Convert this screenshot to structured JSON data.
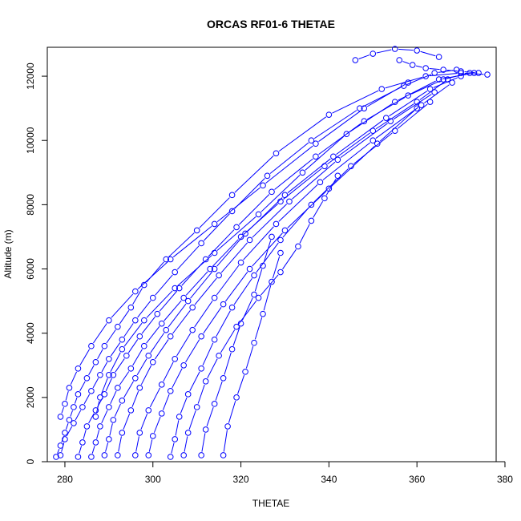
{
  "chart_data": {
    "type": "line",
    "title": "ORCAS RF01-6 THETAE",
    "xlabel": "THETAE",
    "ylabel": "Altitude (m)",
    "xlim": [
      276,
      378
    ],
    "ylim": [
      0,
      12900
    ],
    "x_ticks": [
      280,
      300,
      320,
      340,
      360,
      380
    ],
    "y_ticks": [
      0,
      2000,
      4000,
      6000,
      8000,
      10000,
      12000
    ],
    "x_tick_labels": [
      "280",
      "300",
      "320",
      "340",
      "360",
      "380"
    ],
    "y_tick_labels": [
      "0",
      "2000",
      "4000",
      "6000",
      "8000",
      "10000",
      "12000"
    ],
    "marker": "open-circle",
    "line_style": "solid with gaps at markers",
    "color": "#0000ff",
    "grid": false,
    "series": [
      {
        "x": [
          278,
          279,
          280,
          281,
          282,
          283,
          285,
          287,
          289,
          292,
          295,
          298,
          303,
          310,
          318,
          328,
          340,
          352,
          362,
          370,
          376
        ],
        "y": [
          150,
          500,
          900,
          1300,
          1700,
          2100,
          2600,
          3100,
          3600,
          4200,
          4800,
          5500,
          6300,
          7200,
          8300,
          9600,
          10800,
          11600,
          12000,
          12100,
          12050
        ]
      },
      {
        "x": [
          279,
          280,
          282,
          284,
          286,
          288,
          290,
          293,
          296,
          300,
          305,
          311,
          318,
          326,
          336,
          347,
          357,
          364,
          369
        ],
        "y": [
          200,
          700,
          1200,
          1700,
          2200,
          2700,
          3200,
          3800,
          4400,
          5100,
          5900,
          6800,
          7800,
          8900,
          10000,
          11000,
          11700,
          12100,
          12200
        ]
      },
      {
        "x": [
          283,
          284,
          285,
          287,
          289,
          291,
          294,
          297,
          301,
          306,
          312,
          319,
          327,
          337,
          348,
          358,
          366,
          372
        ],
        "y": [
          150,
          600,
          1100,
          1600,
          2100,
          2700,
          3300,
          3900,
          4600,
          5400,
          6300,
          7300,
          8400,
          9500,
          10600,
          11400,
          11900,
          12100
        ]
      },
      {
        "x": [
          286,
          287,
          288,
          290,
          292,
          295,
          298,
          302,
          307,
          313,
          320,
          329,
          339,
          350,
          360,
          367
        ],
        "y": [
          150,
          600,
          1100,
          1700,
          2300,
          2900,
          3600,
          4300,
          5100,
          6000,
          7000,
          8100,
          9200,
          10300,
          11200,
          11900
        ]
      },
      {
        "x": [
          289,
          290,
          291,
          293,
          296,
          299,
          303,
          308,
          314,
          321,
          330,
          341,
          353,
          363,
          370
        ],
        "y": [
          200,
          700,
          1300,
          1900,
          2600,
          3300,
          4100,
          5000,
          6000,
          7100,
          8300,
          9500,
          10700,
          11600,
          12000
        ]
      },
      {
        "x": [
          292,
          293,
          295,
          297,
          300,
          304,
          309,
          315,
          322,
          331,
          342,
          354,
          364
        ],
        "y": [
          200,
          900,
          1600,
          2300,
          3100,
          3900,
          4800,
          5800,
          6900,
          8100,
          9400,
          10600,
          11500
        ]
      },
      {
        "x": [
          296,
          297,
          299,
          302,
          305,
          309,
          314,
          320,
          328,
          338,
          350,
          361,
          368
        ],
        "y": [
          200,
          900,
          1600,
          2400,
          3200,
          4100,
          5100,
          6200,
          7400,
          8700,
          10000,
          11100,
          11800
        ]
      },
      {
        "x": [
          299,
          300,
          302,
          304,
          307,
          311,
          316,
          322,
          330,
          340,
          351,
          360
        ],
        "y": [
          200,
          800,
          1500,
          2200,
          3000,
          3900,
          4900,
          6000,
          7200,
          8500,
          9900,
          11000
        ]
      },
      {
        "x": [
          304,
          305,
          306,
          308,
          311,
          314,
          318,
          323,
          329,
          336,
          345,
          355,
          363
        ],
        "y": [
          150,
          700,
          1400,
          2100,
          2900,
          3800,
          4800,
          5800,
          6900,
          8000,
          9200,
          10300,
          11200
        ]
      },
      {
        "x": [
          307,
          308,
          310,
          312,
          315,
          319,
          324,
          329,
          333,
          336,
          339,
          342
        ],
        "y": [
          200,
          900,
          1700,
          2500,
          3300,
          4200,
          5100,
          5900,
          6700,
          7500,
          8200,
          8900
        ]
      },
      {
        "x": [
          311,
          312,
          314,
          316,
          318,
          320,
          323,
          325,
          327
        ],
        "y": [
          200,
          1000,
          1800,
          2600,
          3500,
          4300,
          5200,
          6100,
          7000
        ]
      },
      {
        "x": [
          316,
          317,
          319,
          321,
          323,
          325,
          327,
          329
        ],
        "y": [
          200,
          1100,
          2000,
          2800,
          3700,
          4600,
          5600,
          6500
        ]
      },
      {
        "x": [
          279,
          280,
          281,
          283,
          286,
          290,
          296,
          304,
          314,
          325,
          337,
          348,
          358
        ],
        "y": [
          1400,
          1800,
          2300,
          2900,
          3600,
          4400,
          5300,
          6300,
          7400,
          8600,
          9900,
          11000,
          11800
        ]
      },
      {
        "x": [
          287,
          288,
          290,
          293,
          298,
          305,
          314,
          324,
          334,
          344,
          355,
          365,
          373
        ],
        "y": [
          1400,
          2000,
          2700,
          3500,
          4400,
          5400,
          6500,
          7700,
          9000,
          10200,
          11200,
          11900,
          12100
        ]
      },
      {
        "x": [
          346,
          350,
          355,
          360,
          365
        ],
        "y": [
          12500,
          12700,
          12850,
          12800,
          12600
        ]
      },
      {
        "x": [
          356,
          359,
          362,
          366,
          370,
          374
        ],
        "y": [
          12500,
          12350,
          12250,
          12200,
          12150,
          12100
        ]
      }
    ]
  }
}
